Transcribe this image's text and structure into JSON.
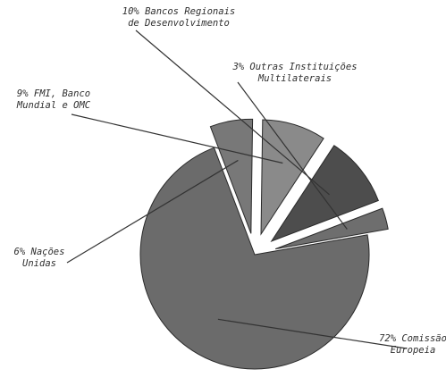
{
  "chart_data": {
    "type": "pie",
    "slices": [
      {
        "value": 72,
        "label": "72% Comissão Europeia",
        "lines": [
          "72% Comissão",
          "Europeia"
        ],
        "color": "#6b6b6b",
        "explode": 0
      },
      {
        "value": 6,
        "label": "6% Nações Unidas",
        "lines": [
          "6% Nações",
          "Unidas"
        ],
        "color": "#787878",
        "explode": 1
      },
      {
        "value": 9,
        "label": "9% FMI, Banco Mundial e OMC",
        "lines": [
          "9% FMI, Banco",
          "Mundial e OMC"
        ],
        "color": "#8a8a8a",
        "explode": 1
      },
      {
        "value": 10,
        "label": "10% Bancos Regionais de Desenvolvimento",
        "lines": [
          "10% Bancos Regionais",
          "de Desenvolvimento"
        ],
        "color": "#4d4d4d",
        "explode": 1
      },
      {
        "value": 3,
        "label": "3% Outras Instituições Multilaterais",
        "lines": [
          "3% Outras Instituições",
          "Multilaterais"
        ],
        "color": "#6e6e6e",
        "explode": 1
      }
    ]
  }
}
